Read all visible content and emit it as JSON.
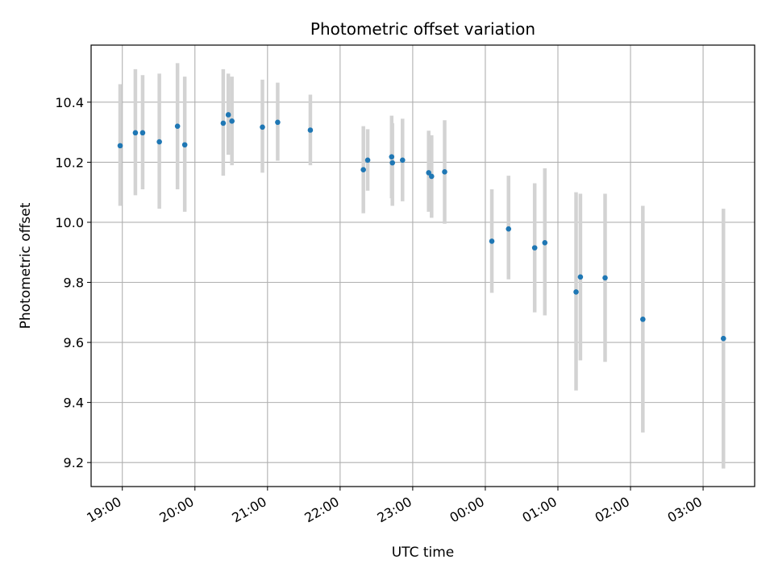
{
  "chart_data": {
    "type": "scatter",
    "title": "Photometric offset variation",
    "xlabel": "UTC time",
    "ylabel": "Photometric offset",
    "x_unit": "UTC hours on a continuous clock (24 = 00:00 next day)",
    "xlim": [
      18.57,
      27.71
    ],
    "ylim": [
      9.12,
      10.59
    ],
    "grid": true,
    "x_ticks": [
      {
        "value": 19,
        "label": "19:00"
      },
      {
        "value": 20,
        "label": "20:00"
      },
      {
        "value": 21,
        "label": "21:00"
      },
      {
        "value": 22,
        "label": "22:00"
      },
      {
        "value": 23,
        "label": "23:00"
      },
      {
        "value": 24,
        "label": "00:00"
      },
      {
        "value": 25,
        "label": "01:00"
      },
      {
        "value": 26,
        "label": "02:00"
      },
      {
        "value": 27,
        "label": "03:00"
      }
    ],
    "y_ticks": [
      {
        "value": 9.2,
        "label": "9.2"
      },
      {
        "value": 9.4,
        "label": "9.4"
      },
      {
        "value": 9.6,
        "label": "9.6"
      },
      {
        "value": 9.8,
        "label": "9.8"
      },
      {
        "value": 10.0,
        "label": "10.0"
      },
      {
        "value": 10.2,
        "label": "10.2"
      },
      {
        "value": 10.4,
        "label": "10.4"
      }
    ],
    "point_color": "#1f77b4",
    "errorbar_color": "#d3d3d3",
    "series": [
      {
        "points": [
          {
            "x": 18.97,
            "y": 10.255,
            "err_low": 10.055,
            "err_high": 10.46
          },
          {
            "x": 19.18,
            "y": 10.298,
            "err_low": 10.09,
            "err_high": 10.51
          },
          {
            "x": 19.28,
            "y": 10.298,
            "err_low": 10.11,
            "err_high": 10.49
          },
          {
            "x": 19.51,
            "y": 10.268,
            "err_low": 10.045,
            "err_high": 10.495
          },
          {
            "x": 19.76,
            "y": 10.32,
            "err_low": 10.11,
            "err_high": 10.53
          },
          {
            "x": 19.86,
            "y": 10.258,
            "err_low": 10.035,
            "err_high": 10.485
          },
          {
            "x": 20.39,
            "y": 10.33,
            "err_low": 10.155,
            "err_high": 10.51
          },
          {
            "x": 20.46,
            "y": 10.358,
            "err_low": 10.225,
            "err_high": 10.495
          },
          {
            "x": 20.51,
            "y": 10.337,
            "err_low": 10.19,
            "err_high": 10.485
          },
          {
            "x": 20.93,
            "y": 10.317,
            "err_low": 10.165,
            "err_high": 10.475
          },
          {
            "x": 21.14,
            "y": 10.333,
            "err_low": 10.205,
            "err_high": 10.465
          },
          {
            "x": 21.59,
            "y": 10.307,
            "err_low": 10.19,
            "err_high": 10.425
          },
          {
            "x": 22.32,
            "y": 10.175,
            "err_low": 10.03,
            "err_high": 10.32
          },
          {
            "x": 22.38,
            "y": 10.207,
            "err_low": 10.105,
            "err_high": 10.31
          },
          {
            "x": 22.71,
            "y": 10.218,
            "err_low": 10.08,
            "err_high": 10.355
          },
          {
            "x": 22.72,
            "y": 10.198,
            "err_low": 10.055,
            "err_high": 10.33
          },
          {
            "x": 22.86,
            "y": 10.207,
            "err_low": 10.07,
            "err_high": 10.345
          },
          {
            "x": 23.22,
            "y": 10.165,
            "err_low": 10.035,
            "err_high": 10.305
          },
          {
            "x": 23.26,
            "y": 10.153,
            "err_low": 10.015,
            "err_high": 10.29
          },
          {
            "x": 23.44,
            "y": 10.168,
            "err_low": 9.995,
            "err_high": 10.34
          },
          {
            "x": 24.09,
            "y": 9.937,
            "err_low": 9.765,
            "err_high": 10.11
          },
          {
            "x": 24.32,
            "y": 9.978,
            "err_low": 9.81,
            "err_high": 10.155
          },
          {
            "x": 24.68,
            "y": 9.915,
            "err_low": 9.7,
            "err_high": 10.13
          },
          {
            "x": 24.82,
            "y": 9.932,
            "err_low": 9.69,
            "err_high": 10.18
          },
          {
            "x": 25.25,
            "y": 9.768,
            "err_low": 9.44,
            "err_high": 10.1
          },
          {
            "x": 25.31,
            "y": 9.818,
            "err_low": 9.54,
            "err_high": 10.095
          },
          {
            "x": 25.65,
            "y": 9.815,
            "err_low": 9.535,
            "err_high": 10.095
          },
          {
            "x": 26.17,
            "y": 9.677,
            "err_low": 9.3,
            "err_high": 10.055
          },
          {
            "x": 27.28,
            "y": 9.613,
            "err_low": 9.18,
            "err_high": 10.045
          }
        ]
      }
    ]
  }
}
